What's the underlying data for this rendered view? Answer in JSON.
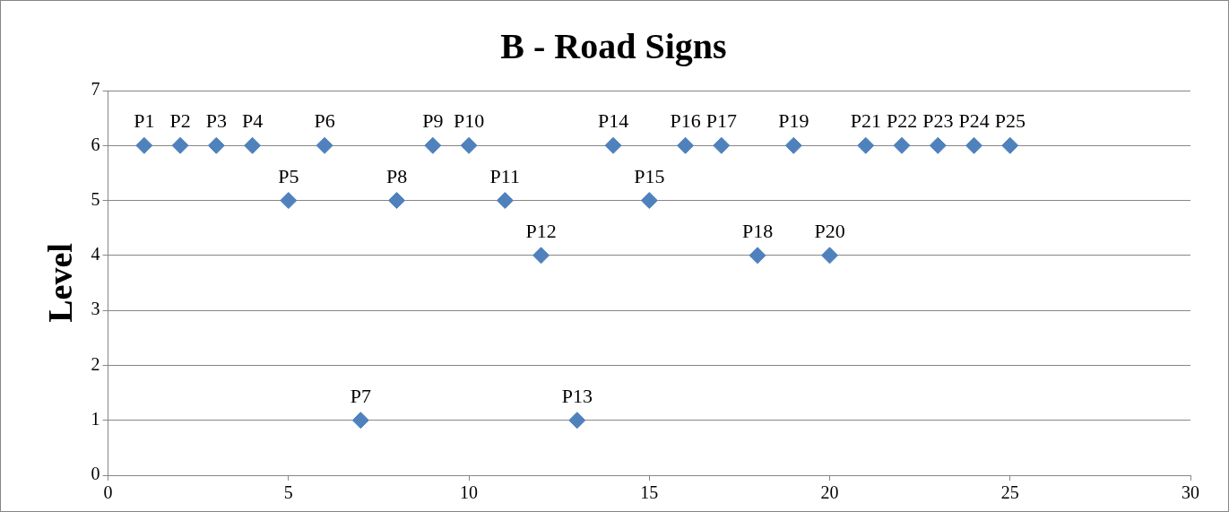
{
  "chart_data": {
    "type": "scatter",
    "title": "B - Road Signs",
    "ylabel": "Level",
    "x": [
      1,
      2,
      3,
      4,
      5,
      6,
      7,
      8,
      9,
      10,
      11,
      12,
      13,
      14,
      15,
      16,
      17,
      18,
      19,
      20,
      21,
      22,
      23,
      24,
      25
    ],
    "values": [
      6,
      6,
      6,
      6,
      5,
      6,
      1,
      5,
      6,
      6,
      5,
      4,
      1,
      6,
      5,
      6,
      6,
      4,
      6,
      4,
      6,
      6,
      6,
      6,
      6
    ],
    "color": "#4f81bd",
    "marker": "diamond",
    "grid": "y",
    "xlim": [
      0,
      30
    ],
    "xticks": [
      0,
      5,
      10,
      15,
      20,
      25,
      30
    ],
    "ylim": [
      0,
      7
    ],
    "yticks": [
      0,
      1,
      2,
      3,
      4,
      5,
      6,
      7
    ],
    "annotations": [
      {
        "text": "P1",
        "x": 1,
        "y": 6
      },
      {
        "text": "P2",
        "x": 2,
        "y": 6
      },
      {
        "text": "P3",
        "x": 3,
        "y": 6
      },
      {
        "text": "P4",
        "x": 4,
        "y": 6
      },
      {
        "text": "P5",
        "x": 5,
        "y": 5
      },
      {
        "text": "P6",
        "x": 6,
        "y": 6
      },
      {
        "text": "P7",
        "x": 7,
        "y": 1
      },
      {
        "text": "P8",
        "x": 8,
        "y": 5
      },
      {
        "text": "P9",
        "x": 9,
        "y": 6
      },
      {
        "text": "P10",
        "x": 10,
        "y": 6
      },
      {
        "text": "P11",
        "x": 11,
        "y": 5
      },
      {
        "text": "P12",
        "x": 12,
        "y": 4
      },
      {
        "text": "P13",
        "x": 13,
        "y": 1
      },
      {
        "text": "P14",
        "x": 14,
        "y": 6
      },
      {
        "text": "P15",
        "x": 15,
        "y": 5
      },
      {
        "text": "P16",
        "x": 16,
        "y": 6
      },
      {
        "text": "P17",
        "x": 17,
        "y": 6
      },
      {
        "text": "P18",
        "x": 18,
        "y": 4
      },
      {
        "text": "P19",
        "x": 19,
        "y": 6
      },
      {
        "text": "P20",
        "x": 20,
        "y": 4
      },
      {
        "text": "P21",
        "x": 21,
        "y": 6
      },
      {
        "text": "P22",
        "x": 22,
        "y": 6
      },
      {
        "text": "P23",
        "x": 23,
        "y": 6
      },
      {
        "text": "P24",
        "x": 24,
        "y": 6
      },
      {
        "text": "P25",
        "x": 25,
        "y": 6
      }
    ]
  }
}
